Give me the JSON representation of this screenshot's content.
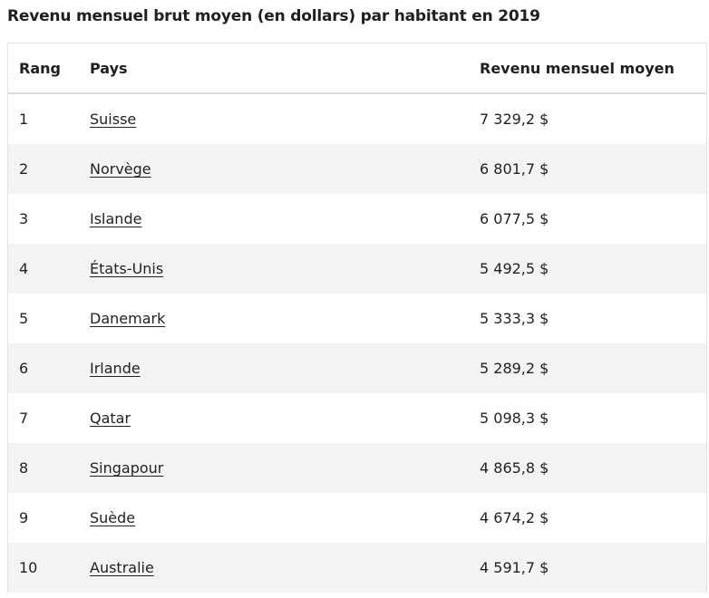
{
  "title": "Revenu mensuel brut moyen (en dollars) par habitant en 2019",
  "table": {
    "headers": {
      "rank": "Rang",
      "country": "Pays",
      "income": "Revenu mensuel moyen"
    },
    "rows": [
      {
        "rank": "1",
        "country": "Suisse",
        "income": "7 329,2 $"
      },
      {
        "rank": "2",
        "country": "Norvège",
        "income": "6 801,7 $"
      },
      {
        "rank": "3",
        "country": "Islande",
        "income": "6 077,5 $"
      },
      {
        "rank": "4",
        "country": "États-Unis",
        "income": "5 492,5 $"
      },
      {
        "rank": "5",
        "country": "Danemark",
        "income": "5 333,3 $"
      },
      {
        "rank": "6",
        "country": "Irlande",
        "income": "5 289,2 $"
      },
      {
        "rank": "7",
        "country": "Qatar",
        "income": "5 098,3 $"
      },
      {
        "rank": "8",
        "country": "Singapour",
        "income": "4 865,8 $"
      },
      {
        "rank": "9",
        "country": "Suède",
        "income": "4 674,2 $"
      },
      {
        "rank": "10",
        "country": "Australie",
        "income": "4 591,7 $"
      }
    ]
  },
  "colors": {
    "row_alt_background": "#f3f3f3",
    "text": "#222222",
    "border": "#e2e2e2"
  }
}
